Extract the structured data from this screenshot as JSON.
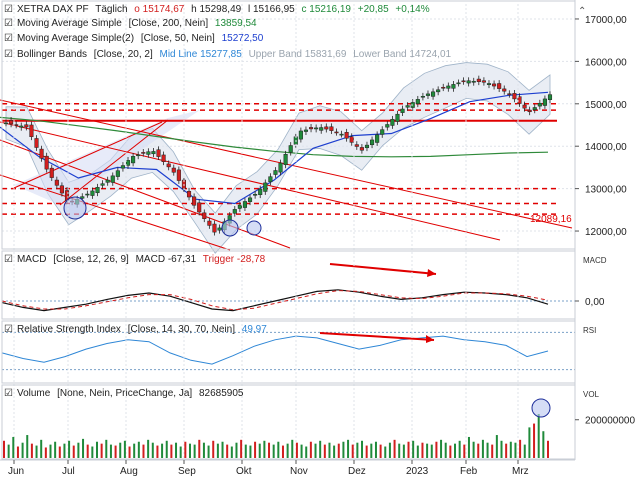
{
  "header": {
    "symbol": "XETRA DAX PF",
    "interval": "Täglich",
    "open": "o 15174,67",
    "high": "h 15298,49",
    "low": "l 15166,95",
    "close": "c 15216,19",
    "change": "+20,85",
    "change_pct": "+0,14%"
  },
  "legends": {
    "ma200": {
      "label": "Moving Average Simple",
      "params": "[Close, 200, Nein]",
      "value": "13859,54"
    },
    "ma50": {
      "label": "Moving Average Simple(2)",
      "params": "[Close, 50, Nein]",
      "value": "15272,50"
    },
    "bb": {
      "label": "Bollinger Bands",
      "params": "[Close, 20, 2]",
      "mid": "Mid Line 15277,85",
      "upper": "Upper Band 15831,69",
      "lower": "Lower Band 14724,01"
    },
    "macd": {
      "label": "MACD",
      "params": "[Close, 12, 26, 9]",
      "value": "MACD -67,31",
      "trigger": "Trigger -28,78"
    },
    "rsi": {
      "label": "Relative Strength Index",
      "params": "[Close, 14, 30, 70, Nein]",
      "value": "49,97"
    },
    "volume": {
      "label": "Volume",
      "params": "[None, Nein, PriceChange, Ja]",
      "value": "82685905"
    }
  },
  "panel_tags": {
    "macd": "MACD",
    "rsi": "RSI",
    "vol": "VOL"
  },
  "trend_label": "12089,16",
  "colors": {
    "up": "#1f8a3a",
    "down": "#d21f1f",
    "ma200": "#2f8a3a",
    "ma50": "#1d3fcf",
    "bb": "#9fb3c8",
    "support": "#e00000",
    "grid": "#dfe3ea",
    "macd": "#111111",
    "trigger": "#d21f1f",
    "rsi": "#2f87d6"
  },
  "chart_data": [
    {
      "type": "line",
      "title": "XETRA DAX PF",
      "x_tick_labels": [
        "Jun",
        "Jul",
        "Aug",
        "Sep",
        "Okt",
        "Nov",
        "Dez",
        "2023",
        "Feb",
        "Mrz"
      ],
      "y_tick_labels": [
        "12000,00",
        "13000,00",
        "14000,00",
        "15000,00",
        "16000,00",
        "17000,00"
      ],
      "ylim": [
        11600,
        17400
      ],
      "series": [
        {
          "name": "Moving Average Simple",
          "values": [
            14680,
            14600,
            14480,
            14360,
            14230,
            14100,
            13980,
            13880,
            13800,
            13760,
            13750,
            13760,
            13800,
            13840,
            13859
          ]
        },
        {
          "name": "Moving Average Simple(2)",
          "values": [
            14450,
            13750,
            13250,
            13500,
            13450,
            12750,
            12650,
            13200,
            13950,
            14250,
            14300,
            14650,
            15050,
            15200,
            15272
          ]
        },
        {
          "name": "Close",
          "values": [
            14550,
            14450,
            13400,
            12650,
            12900,
            13250,
            13750,
            13900,
            13400,
            12600,
            11950,
            12550,
            12900,
            13500,
            14350,
            14450,
            14300,
            13900,
            14400,
            14900,
            15200,
            15400,
            15550,
            15500,
            15250,
            14800,
            15216
          ]
        }
      ],
      "horizontal_levels": [
        15000,
        14850,
        14600,
        13000,
        12650,
        12400
      ]
    },
    {
      "type": "line",
      "title": "MACD",
      "y_tick_labels": [
        "0,00"
      ],
      "series": [
        {
          "name": "MACD",
          "values": [
            -0.1,
            -0.4,
            -0.6,
            -0.4,
            -0.2,
            0.1,
            0.35,
            0.5,
            0.3,
            -0.1,
            -0.5,
            -0.6,
            -0.3,
            0.0,
            0.3,
            0.6,
            0.7,
            0.55,
            0.3,
            0.1,
            0.2,
            0.4,
            0.55,
            0.5,
            0.4,
            0.2,
            -0.2
          ]
        },
        {
          "name": "Trigger",
          "values": [
            0.0,
            -0.3,
            -0.5,
            -0.5,
            -0.3,
            -0.05,
            0.2,
            0.4,
            0.4,
            0.1,
            -0.3,
            -0.55,
            -0.45,
            -0.15,
            0.15,
            0.45,
            0.65,
            0.6,
            0.4,
            0.2,
            0.15,
            0.3,
            0.5,
            0.5,
            0.45,
            0.3,
            0.05
          ]
        }
      ]
    },
    {
      "type": "line",
      "title": "Relative Strength Index",
      "series": [
        {
          "name": "Relative Strength Index",
          "values": [
            48,
            42,
            38,
            44,
            52,
            58,
            62,
            60,
            48,
            40,
            36,
            45,
            55,
            62,
            66,
            64,
            58,
            52,
            56,
            62,
            64,
            66,
            62,
            60,
            56,
            44,
            50
          ]
        }
      ]
    },
    {
      "type": "bar",
      "title": "Volume",
      "y_tick_labels": [
        "200000000"
      ],
      "values": [
        90,
        70,
        110,
        60,
        80,
        120,
        75,
        65,
        95,
        55,
        70,
        85,
        60,
        75,
        90,
        65,
        80,
        100,
        70,
        60,
        85,
        75,
        95,
        70,
        65,
        80,
        90,
        60,
        75,
        85,
        70,
        95,
        80,
        65,
        75,
        90,
        70,
        80,
        60,
        85,
        75,
        70,
        95,
        80,
        65,
        90,
        75,
        85,
        70,
        60,
        80,
        95,
        70,
        65,
        85,
        75,
        90,
        80,
        70,
        85,
        65,
        75,
        95,
        80,
        70,
        60,
        85,
        75,
        90,
        70,
        80,
        65,
        75,
        85,
        95,
        70,
        80,
        90,
        65,
        75,
        85,
        70,
        60,
        80,
        95,
        75,
        70,
        85,
        90,
        65,
        80,
        75,
        70,
        85,
        95,
        80,
        65,
        75,
        90,
        70,
        110,
        85,
        75,
        95,
        80,
        70,
        120,
        90,
        75,
        85,
        80,
        95,
        70,
        160,
        180,
        230,
        140,
        90
      ]
    }
  ]
}
